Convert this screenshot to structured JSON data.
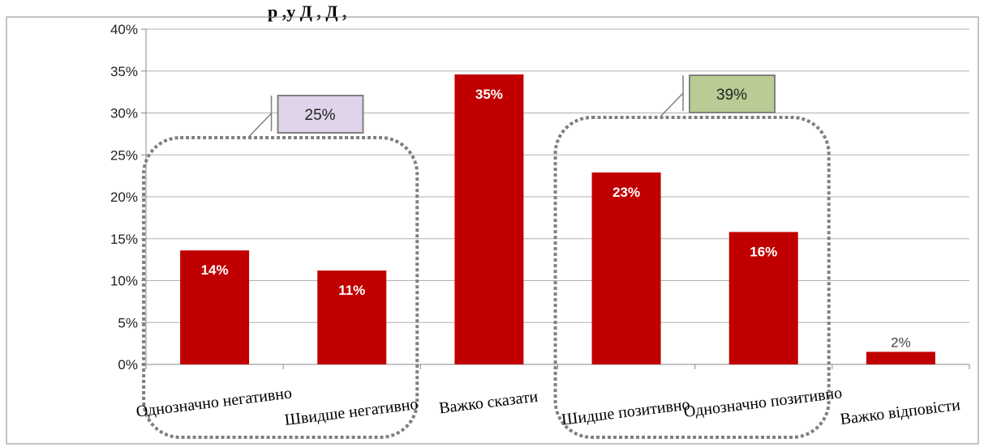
{
  "chart_data": {
    "type": "bar",
    "title_fragment": "р ,у Д , Д ,",
    "categories": [
      "Однозначно негативно",
      "Швидше негативно",
      "Важко сказати",
      "Шидше позитивно",
      "Однозначно позитивно",
      "Важко відповісти"
    ],
    "values": [
      13.6,
      11.2,
      34.6,
      22.9,
      15.8,
      1.5
    ],
    "data_labels": [
      "14%",
      "11%",
      "35%",
      "23%",
      "16%",
      "2%"
    ],
    "y_ticks": [
      "0%",
      "5%",
      "10%",
      "15%",
      "20%",
      "25%",
      "30%",
      "35%",
      "40%"
    ],
    "ylim": [
      0,
      40
    ],
    "grid": true,
    "legend": "none",
    "bar_color": "#c00000",
    "groups": [
      {
        "label": "25%",
        "fill": "#e0d4ea",
        "members": [
          0,
          1
        ]
      },
      {
        "label": "39%",
        "fill": "#b8cc94",
        "members": [
          3,
          4
        ]
      }
    ]
  }
}
